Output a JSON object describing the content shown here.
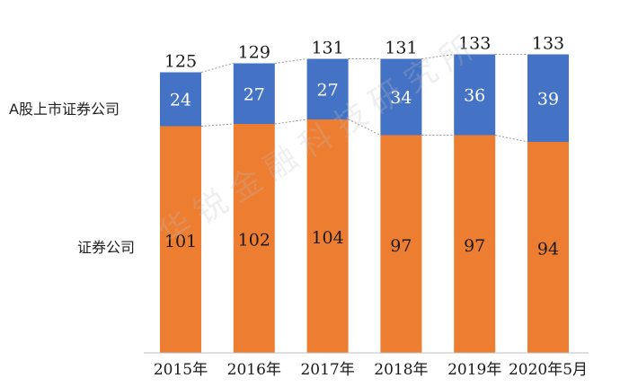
{
  "chart_data": {
    "type": "bar",
    "stacked": true,
    "categories": [
      "2015年",
      "2016年",
      "2017年",
      "2018年",
      "2019年",
      "2020年5月"
    ],
    "series": [
      {
        "name": "证券公司",
        "values": [
          101,
          102,
          104,
          97,
          97,
          94
        ],
        "color": "#ED7D31"
      },
      {
        "name": "A股上市证券公司",
        "values": [
          24,
          27,
          27,
          34,
          36,
          39
        ],
        "color": "#4472C4"
      }
    ],
    "totals": [
      125,
      129,
      131,
      131,
      133,
      133
    ],
    "ylim": [
      0,
      140
    ],
    "grid": false,
    "legend_placement": "left, inline with series",
    "connector_lines": "dotted"
  },
  "watermark": "华锐金融科技研究所"
}
